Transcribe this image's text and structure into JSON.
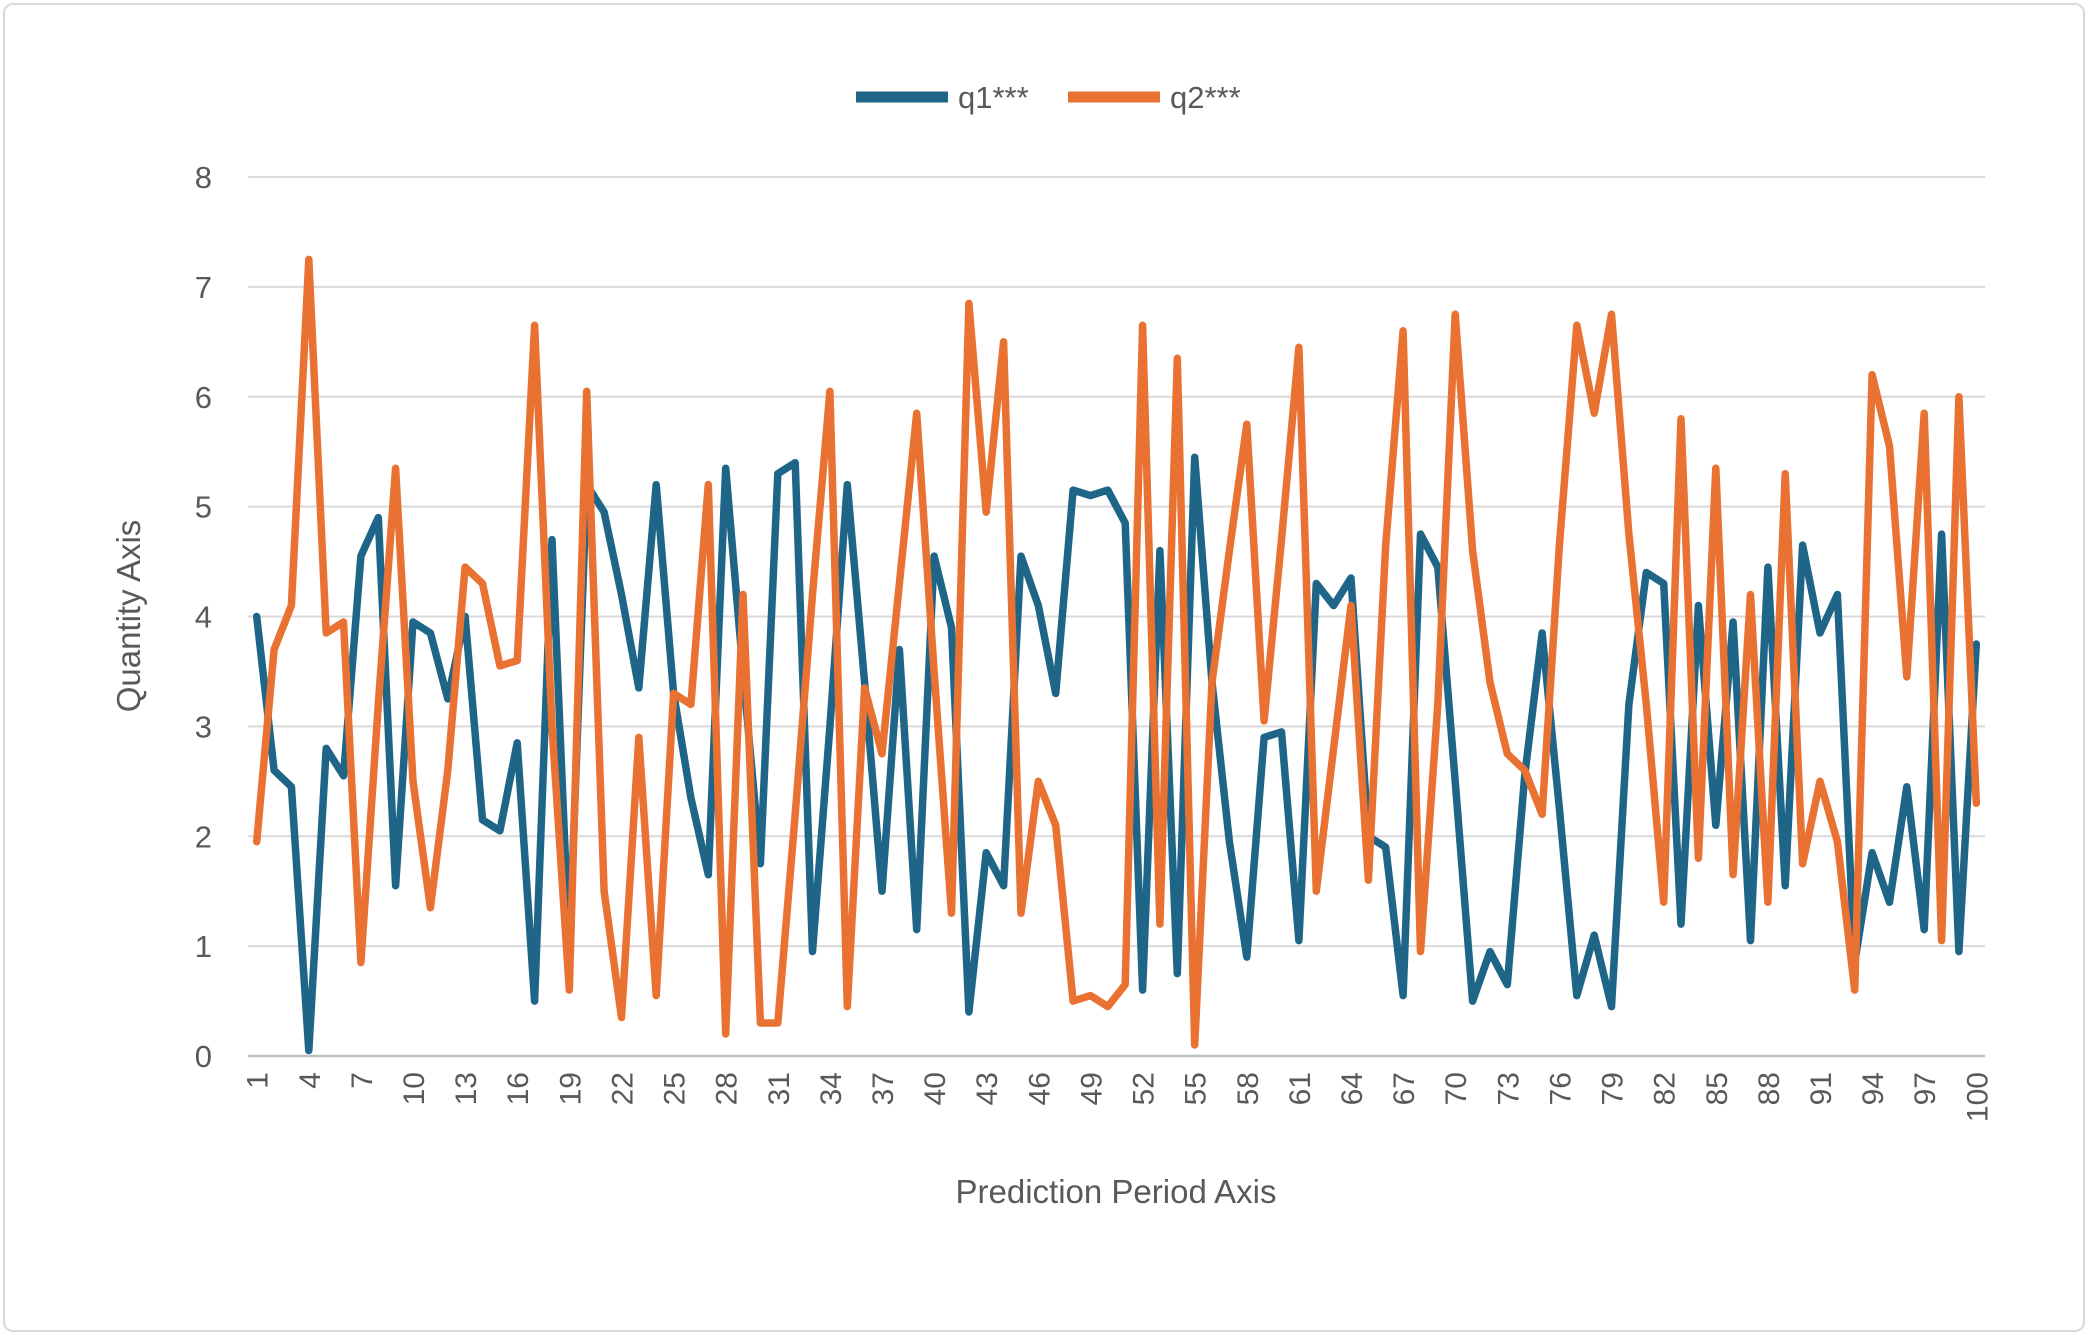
{
  "frame": {
    "background": "#FFFFFF",
    "border_color": "#D9D9D9"
  },
  "legend": {
    "position": "top-center",
    "items": [
      {
        "label": "q1***",
        "color": "#1F6587"
      },
      {
        "label": "q2***",
        "color": "#E97132"
      }
    ]
  },
  "axis_style": {
    "tick_label_color": "#595959",
    "axis_title_color": "#595959",
    "gridline_color": "#D9D9D9",
    "axis_line_color": "#BFBFBF"
  },
  "chart_data": {
    "type": "line",
    "title": "",
    "xlabel": "Prediction Period Axis",
    "ylabel": "Quantity Axis",
    "ylim": [
      0,
      8
    ],
    "grid": true,
    "legend_position": "top",
    "y_ticks": [
      0,
      1,
      2,
      3,
      4,
      5,
      6,
      7,
      8
    ],
    "x_tick_labels": [
      "1",
      "4",
      "7",
      "10",
      "13",
      "16",
      "19",
      "22",
      "25",
      "28",
      "31",
      "34",
      "37",
      "40",
      "43",
      "46",
      "49",
      "52",
      "55",
      "58",
      "61",
      "64",
      "67",
      "70",
      "73",
      "76",
      "79",
      "82",
      "85",
      "88",
      "91",
      "94",
      "97",
      "100"
    ],
    "x_tick_step": 3,
    "x": [
      1,
      2,
      3,
      4,
      5,
      6,
      7,
      8,
      9,
      10,
      11,
      12,
      13,
      14,
      15,
      16,
      17,
      18,
      19,
      20,
      21,
      22,
      23,
      24,
      25,
      26,
      27,
      28,
      29,
      30,
      31,
      32,
      33,
      34,
      35,
      36,
      37,
      38,
      39,
      40,
      41,
      42,
      43,
      44,
      45,
      46,
      47,
      48,
      49,
      50,
      51,
      52,
      53,
      54,
      55,
      56,
      57,
      58,
      59,
      60,
      61,
      62,
      63,
      64,
      65,
      66,
      67,
      68,
      69,
      70,
      71,
      72,
      73,
      74,
      75,
      76,
      77,
      78,
      79,
      80,
      81,
      82,
      83,
      84,
      85,
      86,
      87,
      88,
      89,
      90,
      91,
      92,
      93,
      94,
      95,
      96,
      97,
      98,
      99,
      100
    ],
    "series": [
      {
        "name": "q1***",
        "color": "#1F6587",
        "values": [
          4.0,
          2.6,
          2.45,
          0.05,
          2.8,
          2.55,
          4.55,
          4.9,
          1.55,
          3.95,
          3.85,
          3.25,
          4.0,
          2.15,
          2.05,
          2.85,
          0.5,
          4.7,
          0.95,
          5.2,
          4.95,
          4.2,
          3.35,
          5.2,
          3.3,
          2.35,
          1.65,
          5.35,
          3.5,
          1.75,
          5.3,
          5.4,
          0.95,
          3.0,
          5.2,
          3.4,
          1.5,
          3.7,
          1.15,
          4.55,
          3.9,
          0.4,
          1.85,
          1.55,
          4.55,
          4.1,
          3.3,
          5.15,
          5.1,
          5.15,
          4.85,
          0.6,
          4.6,
          0.75,
          5.45,
          3.4,
          1.95,
          0.9,
          2.9,
          2.95,
          1.05,
          4.3,
          4.1,
          4.35,
          2.0,
          1.9,
          0.55,
          4.75,
          4.45,
          2.5,
          0.5,
          0.95,
          0.65,
          2.55,
          3.85,
          2.25,
          0.55,
          1.1,
          0.45,
          3.2,
          4.4,
          4.3,
          1.2,
          4.1,
          2.1,
          3.95,
          1.05,
          4.45,
          1.55,
          4.65,
          3.85,
          4.2,
          0.85,
          1.85,
          1.4,
          2.45,
          1.15,
          4.75,
          0.95,
          3.75
        ]
      },
      {
        "name": "q2***",
        "color": "#E97132",
        "values": [
          1.95,
          3.7,
          4.1,
          7.25,
          3.85,
          3.95,
          0.85,
          3.2,
          5.35,
          2.5,
          1.35,
          2.6,
          4.45,
          4.3,
          3.55,
          3.6,
          6.65,
          3.0,
          0.6,
          6.05,
          1.5,
          0.35,
          2.9,
          0.55,
          3.3,
          3.2,
          5.2,
          0.2,
          4.2,
          0.3,
          0.3,
          2.2,
          4.2,
          6.05,
          0.45,
          3.35,
          2.75,
          4.3,
          5.85,
          3.5,
          1.3,
          6.85,
          4.95,
          6.5,
          1.3,
          2.5,
          2.1,
          0.5,
          0.55,
          0.45,
          0.65,
          6.65,
          1.2,
          6.35,
          0.1,
          3.4,
          4.6,
          5.75,
          3.05,
          4.7,
          6.45,
          1.5,
          2.8,
          4.1,
          1.6,
          4.65,
          6.6,
          0.95,
          3.2,
          6.75,
          4.6,
          3.4,
          2.75,
          2.6,
          2.2,
          4.65,
          6.65,
          5.85,
          6.75,
          4.75,
          3.2,
          1.4,
          5.8,
          1.8,
          5.35,
          1.65,
          4.2,
          1.4,
          5.3,
          1.75,
          2.5,
          1.95,
          0.6,
          6.2,
          5.55,
          3.45,
          5.85,
          1.05,
          6.0,
          2.3
        ]
      }
    ]
  }
}
